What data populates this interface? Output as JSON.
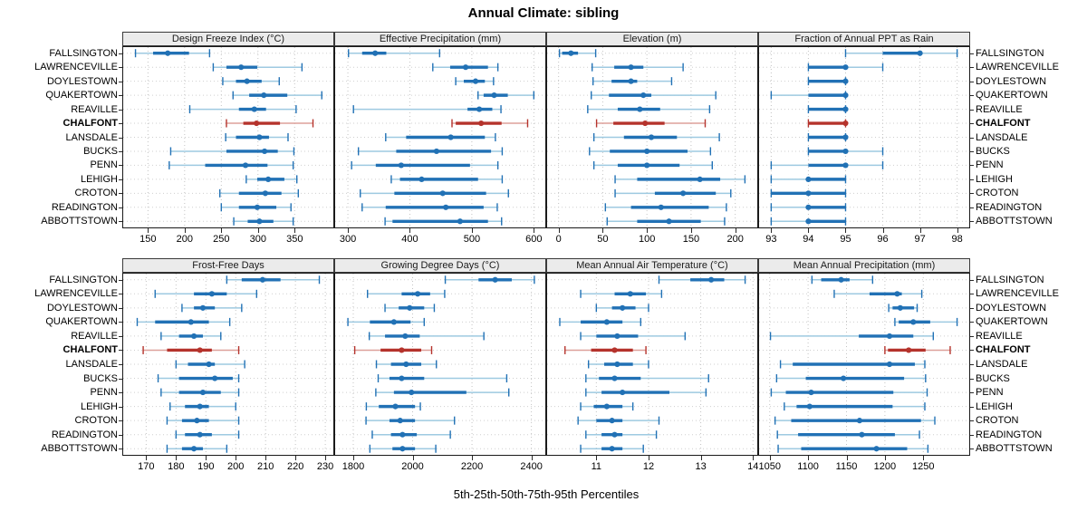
{
  "title": "Annual Climate: sibling",
  "footer": "5th-25th-50th-75th-95th Percentiles",
  "highlight_category": "CHALFONT",
  "colors": {
    "series": "#2171b5",
    "series_light": "#9ecae1",
    "highlight": "#b5332c",
    "highlight_light": "#dda09a",
    "strip_bg": "#ebebeb",
    "panel_border": "#1a1a1a",
    "grid_vertical": "#c3c3c3",
    "grid_horizontal": "#cfcfcf"
  },
  "categories": [
    "FALLSINGTON",
    "LAWRENCEVILLE",
    "DOYLESTOWN",
    "QUAKERTOWN",
    "REAVILLE",
    "CHALFONT",
    "LANSDALE",
    "BUCKS",
    "PENN",
    "LEHIGH",
    "CROTON",
    "READINGTON",
    "ABBOTTSTOWN"
  ],
  "chart_data": {
    "type": "dotplot-percentile-intervals (trellis, 2x4 panels)",
    "percentiles": [
      5,
      25,
      50,
      75,
      95
    ],
    "legend_note": "dot = 50th percentile, thick bar = 25th-75th, thin line with caps = 5th-95th",
    "panels": [
      {
        "strip": "Design Freeze Index (°C)",
        "row": 0,
        "col": 0,
        "ticks": [
          150,
          200,
          250,
          300,
          350
        ],
        "xlim": [
          115,
          404
        ],
        "values": [
          [
            133,
            157,
            177,
            206,
            234
          ],
          [
            239,
            257,
            277,
            299,
            360
          ],
          [
            252,
            270,
            285,
            305,
            329
          ],
          [
            266,
            288,
            308,
            340,
            387
          ],
          [
            207,
            274,
            295,
            311,
            352
          ],
          [
            257,
            280,
            298,
            330,
            375
          ],
          [
            256,
            270,
            302,
            315,
            341
          ],
          [
            181,
            257,
            309,
            327,
            349
          ],
          [
            179,
            228,
            283,
            313,
            348
          ],
          [
            284,
            299,
            314,
            336,
            353
          ],
          [
            248,
            274,
            310,
            332,
            355
          ],
          [
            250,
            274,
            299,
            325,
            345
          ],
          [
            267,
            286,
            302,
            321,
            348
          ]
        ]
      },
      {
        "strip": "Effective Precipitation (mm)",
        "row": 0,
        "col": 1,
        "ticks": [
          300,
          400,
          500,
          600
        ],
        "xlim": [
          278,
          620
        ],
        "values": [
          [
            301,
            323,
            344,
            362,
            448
          ],
          [
            437,
            465,
            490,
            526,
            542
          ],
          [
            474,
            487,
            506,
            521,
            535
          ],
          [
            510,
            519,
            536,
            558,
            600
          ],
          [
            309,
            493,
            512,
            533,
            547
          ],
          [
            468,
            474,
            515,
            548,
            590
          ],
          [
            361,
            394,
            466,
            521,
            538
          ],
          [
            317,
            378,
            443,
            531,
            549
          ],
          [
            306,
            345,
            386,
            497,
            542
          ],
          [
            370,
            384,
            419,
            510,
            549
          ],
          [
            320,
            375,
            453,
            523,
            559
          ],
          [
            323,
            361,
            458,
            519,
            541
          ],
          [
            360,
            372,
            481,
            526,
            548
          ]
        ]
      },
      {
        "strip": "Elevation (m)",
        "row": 0,
        "col": 2,
        "ticks": [
          0,
          50,
          100,
          150,
          200
        ],
        "xlim": [
          -14,
          226
        ],
        "values": [
          [
            1,
            4,
            14,
            22,
            42
          ],
          [
            38,
            63,
            82,
            96,
            141
          ],
          [
            39,
            60,
            82,
            89,
            128
          ],
          [
            37,
            57,
            96,
            105,
            178
          ],
          [
            33,
            67,
            92,
            115,
            171
          ],
          [
            43,
            62,
            98,
            120,
            166
          ],
          [
            40,
            74,
            105,
            134,
            182
          ],
          [
            35,
            58,
            100,
            146,
            172
          ],
          [
            40,
            67,
            100,
            137,
            174
          ],
          [
            64,
            89,
            160,
            183,
            211
          ],
          [
            64,
            109,
            141,
            178,
            195
          ],
          [
            53,
            82,
            116,
            170,
            190
          ],
          [
            55,
            89,
            125,
            161,
            188
          ]
        ]
      },
      {
        "strip": "Fraction of Annual PPT as Rain",
        "row": 0,
        "col": 3,
        "ticks": [
          93,
          94,
          95,
          96,
          97,
          98
        ],
        "xlim": [
          92.65,
          98.35
        ],
        "values": [
          [
            95,
            96,
            97,
            97,
            98
          ],
          [
            94,
            94,
            95,
            95,
            96
          ],
          [
            94,
            94,
            95,
            95,
            95
          ],
          [
            93,
            94,
            95,
            95,
            95
          ],
          [
            94,
            94,
            95,
            95,
            95
          ],
          [
            94,
            94,
            95,
            95,
            95
          ],
          [
            94,
            94,
            95,
            95,
            95
          ],
          [
            94,
            94,
            95,
            95,
            96
          ],
          [
            93,
            94,
            95,
            95,
            96
          ],
          [
            93,
            94,
            94,
            95,
            95
          ],
          [
            93,
            93,
            94,
            95,
            95
          ],
          [
            93,
            94,
            94,
            95,
            95
          ],
          [
            93,
            94,
            94,
            95,
            95
          ]
        ]
      },
      {
        "strip": "Frost-Free Days",
        "row": 1,
        "col": 0,
        "ticks": [
          170,
          180,
          190,
          200,
          210,
          220,
          230
        ],
        "xlim": [
          162,
          233
        ],
        "values": [
          [
            197,
            202,
            209,
            215,
            228
          ],
          [
            173,
            186,
            192,
            197,
            207
          ],
          [
            182,
            186,
            189,
            193,
            202
          ],
          [
            167,
            173,
            185,
            191,
            198
          ],
          [
            175,
            181,
            186,
            189,
            195
          ],
          [
            169,
            177,
            188,
            192,
            201
          ],
          [
            180,
            184,
            191,
            193,
            203
          ],
          [
            174,
            181,
            193,
            199,
            201
          ],
          [
            175,
            181,
            189,
            195,
            201
          ],
          [
            178,
            183,
            188,
            191,
            200
          ],
          [
            177,
            182,
            187,
            191,
            201
          ],
          [
            180,
            183,
            188,
            192,
            201
          ],
          [
            177,
            182,
            186,
            189,
            197
          ]
        ]
      },
      {
        "strip": "Growing Degree Days (°C)",
        "row": 1,
        "col": 1,
        "ticks": [
          1800,
          2000,
          2200,
          2400
        ],
        "xlim": [
          1736,
          2450
        ],
        "values": [
          [
            2110,
            2222,
            2278,
            2334,
            2410
          ],
          [
            1848,
            1963,
            2017,
            2059,
            2108
          ],
          [
            1907,
            1953,
            1990,
            2039,
            2073
          ],
          [
            1782,
            1856,
            1937,
            1993,
            2039
          ],
          [
            1854,
            1907,
            1975,
            2024,
            2240
          ],
          [
            1805,
            1892,
            1963,
            2029,
            2064
          ],
          [
            1878,
            1927,
            1978,
            2029,
            2080
          ],
          [
            1884,
            1922,
            1963,
            2039,
            2317
          ],
          [
            1876,
            1937,
            1996,
            2181,
            2324
          ],
          [
            1844,
            1886,
            1942,
            2008,
            2026
          ],
          [
            1843,
            1922,
            1958,
            2008,
            2141
          ],
          [
            1864,
            1927,
            1966,
            2014,
            2127
          ],
          [
            1856,
            1932,
            1966,
            2008,
            2078
          ]
        ]
      },
      {
        "strip": "Mean Annual Air Temperature (°C)",
        "row": 1,
        "col": 2,
        "ticks": [
          11,
          12,
          13,
          14
        ],
        "xlim": [
          10.04,
          14.1
        ],
        "values": [
          [
            12.2,
            12.8,
            13.2,
            13.45,
            13.85
          ],
          [
            10.7,
            11.35,
            11.65,
            11.95,
            12.25
          ],
          [
            11.0,
            11.3,
            11.5,
            11.75,
            12.0
          ],
          [
            10.3,
            10.7,
            11.2,
            11.5,
            11.85
          ],
          [
            10.7,
            11.0,
            11.4,
            11.8,
            12.7
          ],
          [
            10.4,
            10.9,
            11.35,
            11.7,
            11.95
          ],
          [
            10.85,
            11.15,
            11.4,
            11.7,
            12.0
          ],
          [
            10.8,
            11.05,
            11.35,
            11.85,
            13.15
          ],
          [
            10.8,
            11.1,
            11.5,
            12.4,
            13.1
          ],
          [
            10.7,
            10.95,
            11.2,
            11.5,
            11.7
          ],
          [
            10.65,
            11.0,
            11.3,
            11.5,
            12.2
          ],
          [
            10.8,
            11.1,
            11.35,
            11.5,
            12.15
          ],
          [
            10.7,
            11.1,
            11.3,
            11.5,
            11.9
          ]
        ]
      },
      {
        "strip": "Mean Annual Precipitation (mm)",
        "row": 1,
        "col": 3,
        "ticks": [
          1050,
          1100,
          1150,
          1200,
          1250
        ],
        "xlim": [
          1035,
          1311
        ],
        "values": [
          [
            1105,
            1117,
            1143,
            1154,
            1184
          ],
          [
            1134,
            1180,
            1216,
            1222,
            1248
          ],
          [
            1205,
            1210,
            1220,
            1238,
            1242
          ],
          [
            1213,
            1218,
            1237,
            1259,
            1294
          ],
          [
            1051,
            1166,
            1206,
            1237,
            1263
          ],
          [
            1200,
            1204,
            1231,
            1253,
            1285
          ],
          [
            1064,
            1080,
            1206,
            1239,
            1252
          ],
          [
            1059,
            1097,
            1146,
            1225,
            1253
          ],
          [
            1052,
            1071,
            1104,
            1211,
            1255
          ],
          [
            1069,
            1085,
            1102,
            1210,
            1252
          ],
          [
            1057,
            1078,
            1167,
            1247,
            1265
          ],
          [
            1060,
            1087,
            1170,
            1213,
            1245
          ],
          [
            1061,
            1091,
            1189,
            1229,
            1256
          ]
        ]
      }
    ]
  }
}
